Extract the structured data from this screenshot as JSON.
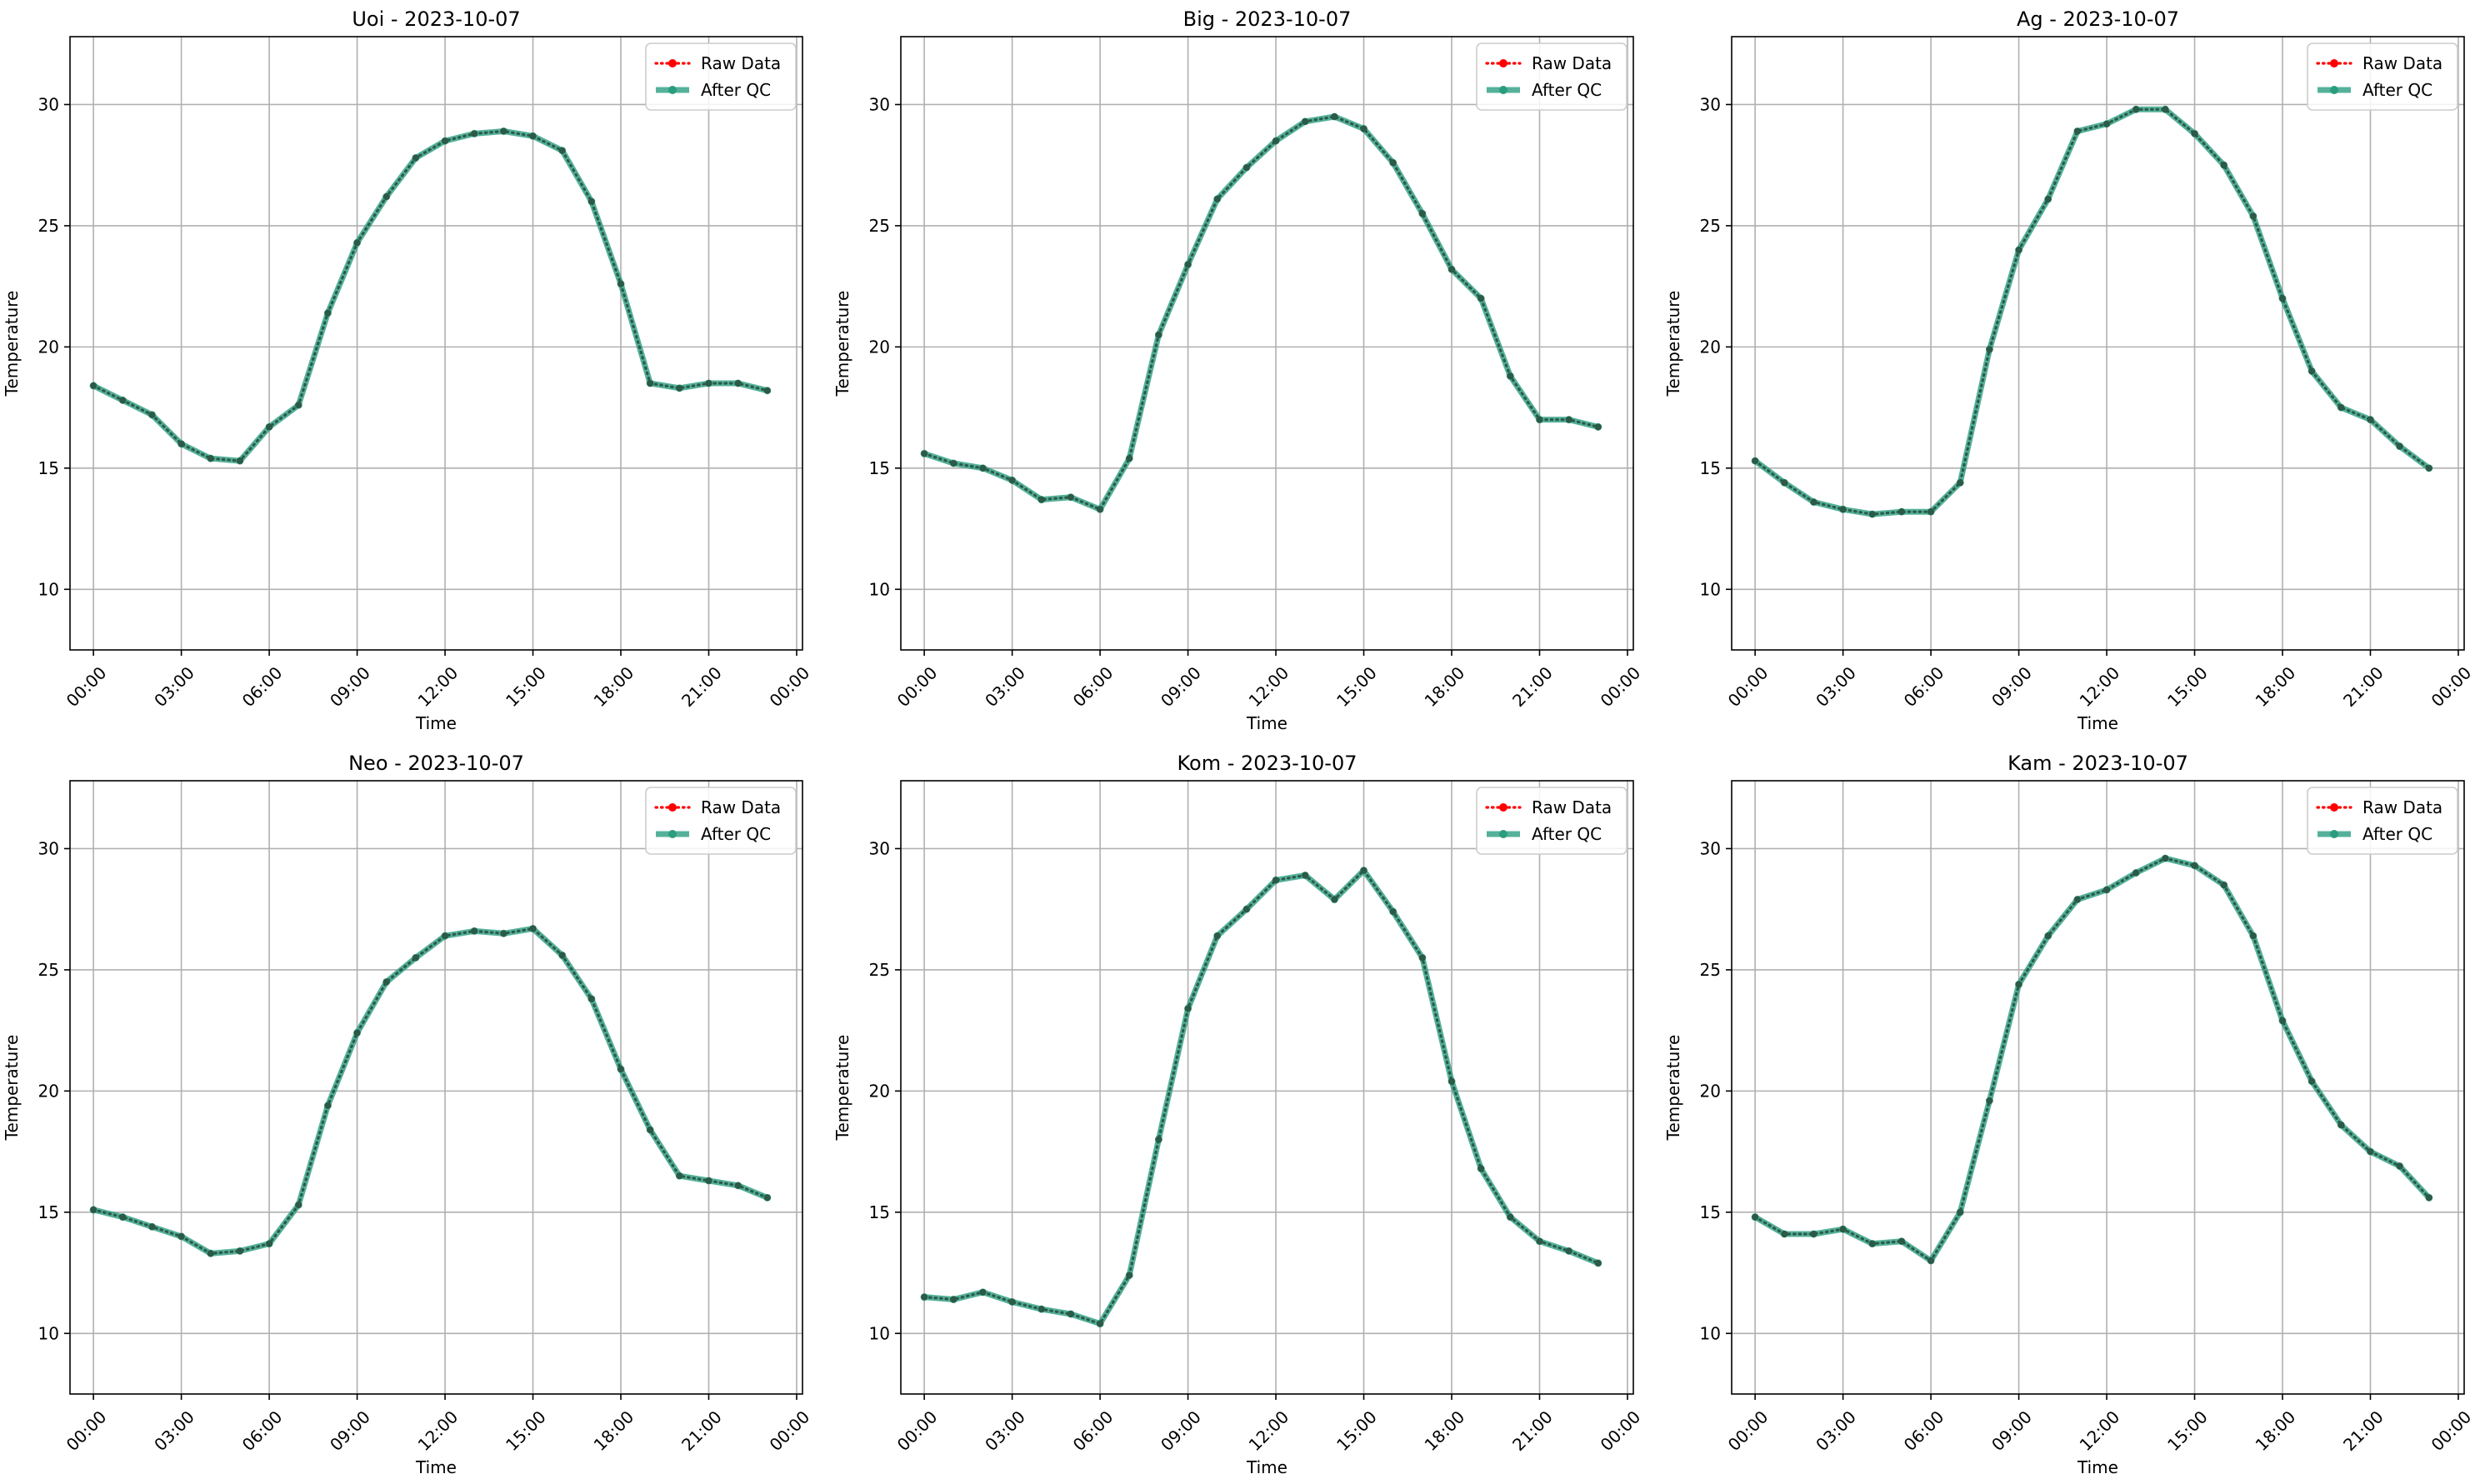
{
  "chart_data": [
    {
      "type": "line",
      "title": "Uoi - 2023-10-07",
      "xlabel": "Time",
      "ylabel": "Temperature",
      "ylim": [
        7.5,
        32.8
      ],
      "yticks": [
        10,
        15,
        20,
        25,
        30
      ],
      "xlim": [
        -0.8,
        24.2
      ],
      "xtick_labels": [
        "00:00",
        "03:00",
        "06:00",
        "09:00",
        "12:00",
        "15:00",
        "18:00",
        "21:00",
        "00:00"
      ],
      "grid": true,
      "legend_position": "top-right",
      "x": [
        "00:00",
        "01:00",
        "02:00",
        "03:00",
        "04:00",
        "05:00",
        "06:00",
        "07:00",
        "08:00",
        "09:00",
        "10:00",
        "11:00",
        "12:00",
        "13:00",
        "14:00",
        "15:00",
        "16:00",
        "17:00",
        "18:00",
        "19:00",
        "20:00",
        "21:00",
        "22:00",
        "23:00"
      ],
      "series": [
        {
          "name": "Raw Data",
          "color": "#ff0000",
          "style": "dotted",
          "values": [
            18.4,
            17.8,
            17.2,
            16.0,
            15.4,
            15.3,
            16.7,
            17.6,
            21.4,
            24.3,
            26.2,
            27.8,
            28.5,
            28.8,
            28.9,
            28.7,
            28.1,
            26.0,
            22.6,
            18.5,
            18.3,
            18.5,
            18.5,
            18.2
          ]
        },
        {
          "name": "After QC",
          "color": "#2a9d7f",
          "style": "solid",
          "values": [
            18.4,
            17.8,
            17.2,
            16.0,
            15.4,
            15.3,
            16.7,
            17.6,
            21.4,
            24.3,
            26.2,
            27.8,
            28.5,
            28.8,
            28.9,
            28.7,
            28.1,
            26.0,
            22.6,
            18.5,
            18.3,
            18.5,
            18.5,
            18.2
          ]
        }
      ]
    },
    {
      "type": "line",
      "title": "Big - 2023-10-07",
      "xlabel": "Time",
      "ylabel": "Temperature",
      "ylim": [
        7.5,
        32.8
      ],
      "yticks": [
        10,
        15,
        20,
        25,
        30
      ],
      "xlim": [
        -0.8,
        24.2
      ],
      "xtick_labels": [
        "00:00",
        "03:00",
        "06:00",
        "09:00",
        "12:00",
        "15:00",
        "18:00",
        "21:00",
        "00:00"
      ],
      "grid": true,
      "legend_position": "top-right",
      "x": [
        "00:00",
        "01:00",
        "02:00",
        "03:00",
        "04:00",
        "05:00",
        "06:00",
        "07:00",
        "08:00",
        "09:00",
        "10:00",
        "11:00",
        "12:00",
        "13:00",
        "14:00",
        "15:00",
        "16:00",
        "17:00",
        "18:00",
        "19:00",
        "20:00",
        "21:00",
        "22:00",
        "23:00"
      ],
      "series": [
        {
          "name": "Raw Data",
          "color": "#ff0000",
          "style": "dotted",
          "values": [
            15.6,
            15.2,
            15.0,
            14.5,
            13.7,
            13.8,
            13.3,
            15.4,
            20.5,
            23.4,
            26.1,
            27.4,
            28.5,
            29.3,
            29.5,
            29.0,
            27.6,
            25.5,
            23.2,
            22.0,
            18.8,
            17.0,
            17.0,
            16.7
          ]
        },
        {
          "name": "After QC",
          "color": "#2a9d7f",
          "style": "solid",
          "values": [
            15.6,
            15.2,
            15.0,
            14.5,
            13.7,
            13.8,
            13.3,
            15.4,
            20.5,
            23.4,
            26.1,
            27.4,
            28.5,
            29.3,
            29.5,
            29.0,
            27.6,
            25.5,
            23.2,
            22.0,
            18.8,
            17.0,
            17.0,
            16.7
          ]
        }
      ]
    },
    {
      "type": "line",
      "title": "Ag - 2023-10-07",
      "xlabel": "Time",
      "ylabel": "Temperature",
      "ylim": [
        7.5,
        32.8
      ],
      "yticks": [
        10,
        15,
        20,
        25,
        30
      ],
      "xlim": [
        -0.8,
        24.2
      ],
      "xtick_labels": [
        "00:00",
        "03:00",
        "06:00",
        "09:00",
        "12:00",
        "15:00",
        "18:00",
        "21:00",
        "00:00"
      ],
      "grid": true,
      "legend_position": "top-right",
      "x": [
        "00:00",
        "01:00",
        "02:00",
        "03:00",
        "04:00",
        "05:00",
        "06:00",
        "07:00",
        "08:00",
        "09:00",
        "10:00",
        "11:00",
        "12:00",
        "13:00",
        "14:00",
        "15:00",
        "16:00",
        "17:00",
        "18:00",
        "19:00",
        "20:00",
        "21:00",
        "22:00",
        "23:00"
      ],
      "series": [
        {
          "name": "Raw Data",
          "color": "#ff0000",
          "style": "dotted",
          "values": [
            15.3,
            14.4,
            13.6,
            13.3,
            13.1,
            13.2,
            13.2,
            14.4,
            19.9,
            24.0,
            26.1,
            28.9,
            29.2,
            29.8,
            29.8,
            28.8,
            27.5,
            25.4,
            22.0,
            19.0,
            17.5,
            17.0,
            15.9,
            15.0
          ]
        },
        {
          "name": "After QC",
          "color": "#2a9d7f",
          "style": "solid",
          "values": [
            15.3,
            14.4,
            13.6,
            13.3,
            13.1,
            13.2,
            13.2,
            14.4,
            19.9,
            24.0,
            26.1,
            28.9,
            29.2,
            29.8,
            29.8,
            28.8,
            27.5,
            25.4,
            22.0,
            19.0,
            17.5,
            17.0,
            15.9,
            15.0
          ]
        }
      ]
    },
    {
      "type": "line",
      "title": "Neo - 2023-10-07",
      "xlabel": "Time",
      "ylabel": "Temperature",
      "ylim": [
        7.5,
        32.8
      ],
      "yticks": [
        10,
        15,
        20,
        25,
        30
      ],
      "xlim": [
        -0.8,
        24.2
      ],
      "xtick_labels": [
        "00:00",
        "03:00",
        "06:00",
        "09:00",
        "12:00",
        "15:00",
        "18:00",
        "21:00",
        "00:00"
      ],
      "grid": true,
      "legend_position": "top-right",
      "x": [
        "00:00",
        "01:00",
        "02:00",
        "03:00",
        "04:00",
        "05:00",
        "06:00",
        "07:00",
        "08:00",
        "09:00",
        "10:00",
        "11:00",
        "12:00",
        "13:00",
        "14:00",
        "15:00",
        "16:00",
        "17:00",
        "18:00",
        "19:00",
        "20:00",
        "21:00",
        "22:00",
        "23:00"
      ],
      "series": [
        {
          "name": "Raw Data",
          "color": "#ff0000",
          "style": "dotted",
          "values": [
            15.1,
            14.8,
            14.4,
            14.0,
            13.3,
            13.4,
            13.7,
            15.3,
            19.4,
            22.4,
            24.5,
            25.5,
            26.4,
            26.6,
            26.5,
            26.7,
            25.6,
            23.8,
            20.9,
            18.4,
            16.5,
            16.3,
            16.1,
            15.6
          ]
        },
        {
          "name": "After QC",
          "color": "#2a9d7f",
          "style": "solid",
          "values": [
            15.1,
            14.8,
            14.4,
            14.0,
            13.3,
            13.4,
            13.7,
            15.3,
            19.4,
            22.4,
            24.5,
            25.5,
            26.4,
            26.6,
            26.5,
            26.7,
            25.6,
            23.8,
            20.9,
            18.4,
            16.5,
            16.3,
            16.1,
            15.6
          ]
        }
      ]
    },
    {
      "type": "line",
      "title": "Kom - 2023-10-07",
      "xlabel": "Time",
      "ylabel": "Temperature",
      "ylim": [
        7.5,
        32.8
      ],
      "yticks": [
        10,
        15,
        20,
        25,
        30
      ],
      "xlim": [
        -0.8,
        24.2
      ],
      "xtick_labels": [
        "00:00",
        "03:00",
        "06:00",
        "09:00",
        "12:00",
        "15:00",
        "18:00",
        "21:00",
        "00:00"
      ],
      "grid": true,
      "legend_position": "top-right",
      "x": [
        "00:00",
        "01:00",
        "02:00",
        "03:00",
        "04:00",
        "05:00",
        "06:00",
        "07:00",
        "08:00",
        "09:00",
        "10:00",
        "11:00",
        "12:00",
        "13:00",
        "14:00",
        "15:00",
        "16:00",
        "17:00",
        "18:00",
        "19:00",
        "20:00",
        "21:00",
        "22:00",
        "23:00"
      ],
      "series": [
        {
          "name": "Raw Data",
          "color": "#ff0000",
          "style": "dotted",
          "values": [
            11.5,
            11.4,
            11.7,
            11.3,
            11.0,
            10.8,
            10.4,
            12.4,
            18.0,
            23.4,
            26.4,
            27.5,
            28.7,
            28.9,
            27.9,
            29.1,
            27.4,
            25.5,
            20.4,
            16.8,
            14.8,
            13.8,
            13.4,
            12.9
          ]
        },
        {
          "name": "After QC",
          "color": "#2a9d7f",
          "style": "solid",
          "values": [
            11.5,
            11.4,
            11.7,
            11.3,
            11.0,
            10.8,
            10.4,
            12.4,
            18.0,
            23.4,
            26.4,
            27.5,
            28.7,
            28.9,
            27.9,
            29.1,
            27.4,
            25.5,
            20.4,
            16.8,
            14.8,
            13.8,
            13.4,
            12.9
          ]
        }
      ]
    },
    {
      "type": "line",
      "title": "Kam - 2023-10-07",
      "xlabel": "Time",
      "ylabel": "Temperature",
      "ylim": [
        7.5,
        32.8
      ],
      "yticks": [
        10,
        15,
        20,
        25,
        30
      ],
      "xlim": [
        -0.8,
        24.2
      ],
      "xtick_labels": [
        "00:00",
        "03:00",
        "06:00",
        "09:00",
        "12:00",
        "15:00",
        "18:00",
        "21:00",
        "00:00"
      ],
      "grid": true,
      "legend_position": "top-right",
      "x": [
        "00:00",
        "01:00",
        "02:00",
        "03:00",
        "04:00",
        "05:00",
        "06:00",
        "07:00",
        "08:00",
        "09:00",
        "10:00",
        "11:00",
        "12:00",
        "13:00",
        "14:00",
        "15:00",
        "16:00",
        "17:00",
        "18:00",
        "19:00",
        "20:00",
        "21:00",
        "22:00",
        "23:00"
      ],
      "series": [
        {
          "name": "Raw Data",
          "color": "#ff0000",
          "style": "dotted",
          "values": [
            14.8,
            14.1,
            14.1,
            14.3,
            13.7,
            13.8,
            13.0,
            15.0,
            19.6,
            24.4,
            26.4,
            27.9,
            28.3,
            29.0,
            29.6,
            29.3,
            28.5,
            26.4,
            22.9,
            20.4,
            18.6,
            17.5,
            16.9,
            15.6
          ]
        },
        {
          "name": "After QC",
          "color": "#2a9d7f",
          "style": "solid",
          "values": [
            14.8,
            14.1,
            14.1,
            14.3,
            13.7,
            13.8,
            13.0,
            15.0,
            19.6,
            24.4,
            26.4,
            27.9,
            28.3,
            29.0,
            29.6,
            29.3,
            28.5,
            26.4,
            22.9,
            20.4,
            18.6,
            17.5,
            16.9,
            15.6
          ]
        }
      ]
    }
  ]
}
